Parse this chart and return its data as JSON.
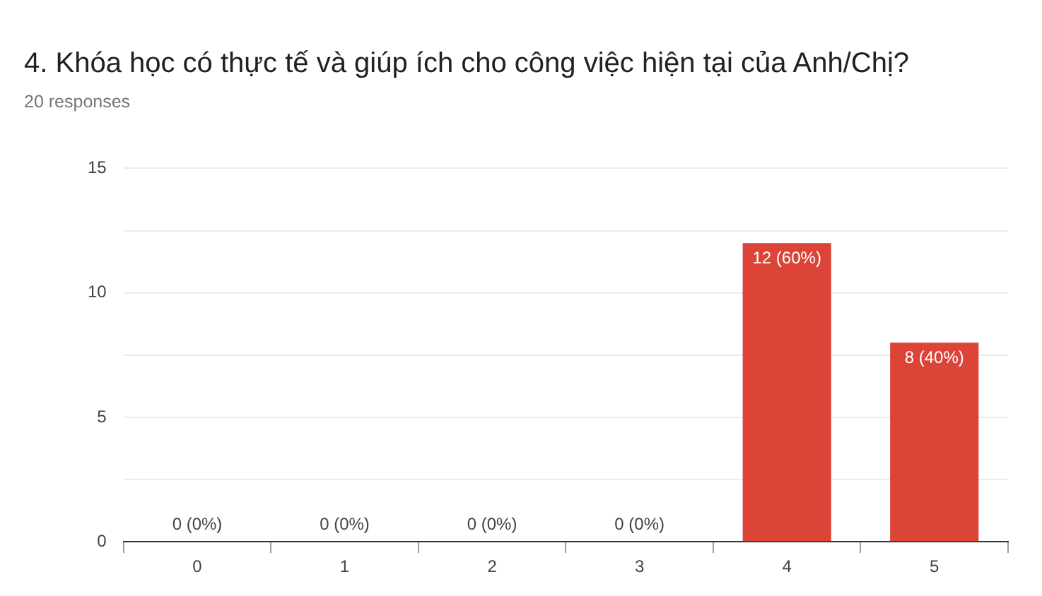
{
  "chart_data": {
    "type": "bar",
    "title": "4. Khóa học có thực tế và giúp ích cho công việc hiện tại của Anh/Chị?",
    "subtitle": "20 responses",
    "categories": [
      "0",
      "1",
      "2",
      "3",
      "4",
      "5"
    ],
    "values": [
      0,
      0,
      0,
      0,
      12,
      8
    ],
    "color": "#db4437",
    "value_labels": [
      "0 (0%)",
      "0 (0%)",
      "0 (0%)",
      "0 (0%)",
      "12 (60%)",
      "8 (40%)"
    ],
    "ylim": [
      0,
      15
    ],
    "yticks": [
      0,
      {
        "value": 2.5,
        "label": null
      },
      5,
      {
        "value": 7.5,
        "label": null
      },
      10,
      {
        "value": 12.5,
        "label": null
      },
      15
    ],
    "grid": "y"
  }
}
